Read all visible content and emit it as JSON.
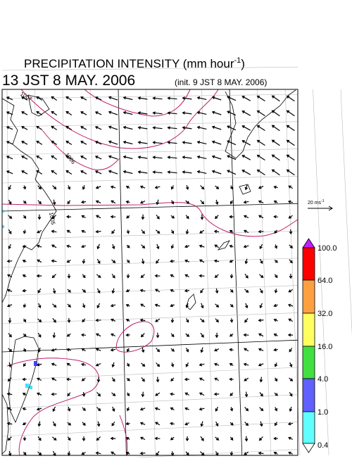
{
  "header": {
    "title": "PRECIPITATION INTENSITY (mm hour",
    "title_unit_exponent": "-1",
    "title_close": ")",
    "valid_time": "13 JST 8 MAY. 2006",
    "init_time": "(init. 9 JST 8 MAY. 2006)"
  },
  "scale_arrow": {
    "label": "20 ms",
    "exponent": "-1"
  },
  "contour_labels": [
    "1007",
    "1006",
    "1005"
  ],
  "colorbar": {
    "labels": [
      "100.0",
      "64.0",
      "32.0",
      "16.0",
      "4.0",
      "1.0",
      "0.4"
    ]
  }
}
